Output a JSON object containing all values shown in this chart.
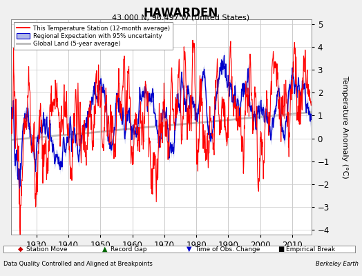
{
  "title": "HAWARDEN",
  "subtitle": "43.000 N, 96.497 W (United States)",
  "xlabel_note": "Data Quality Controlled and Aligned at Breakpoints",
  "xlabel_right": "Berkeley Earth",
  "ylabel": "Temperature Anomaly (°C)",
  "xlim": [
    1922,
    2016
  ],
  "ylim": [
    -4.2,
    5.2
  ],
  "yticks": [
    -4,
    -3,
    -2,
    -1,
    0,
    1,
    2,
    3,
    4,
    5
  ],
  "xticks": [
    1930,
    1940,
    1950,
    1960,
    1970,
    1980,
    1990,
    2000,
    2010
  ],
  "color_station": "#ff0000",
  "color_regional": "#0000cc",
  "color_uncertainty": "#b0b8e8",
  "color_global": "#bbbbbb",
  "background_color": "#f0f0f0",
  "plot_bg_color": "#ffffff",
  "legend_items": [
    "This Temperature Station (12-month average)",
    "Regional Expectation with 95% uncertainty",
    "Global Land (5-year average)"
  ],
  "marker_items": [
    [
      "Station Move",
      "#ff0000",
      "diamond"
    ],
    [
      "Record Gap",
      "#006600",
      "triangle_up"
    ],
    [
      "Time of Obs. Change",
      "#0000cc",
      "triangle_down"
    ],
    [
      "Empirical Break",
      "#000000",
      "square"
    ]
  ],
  "seed": 12,
  "start_year": 1922,
  "end_year": 2015
}
